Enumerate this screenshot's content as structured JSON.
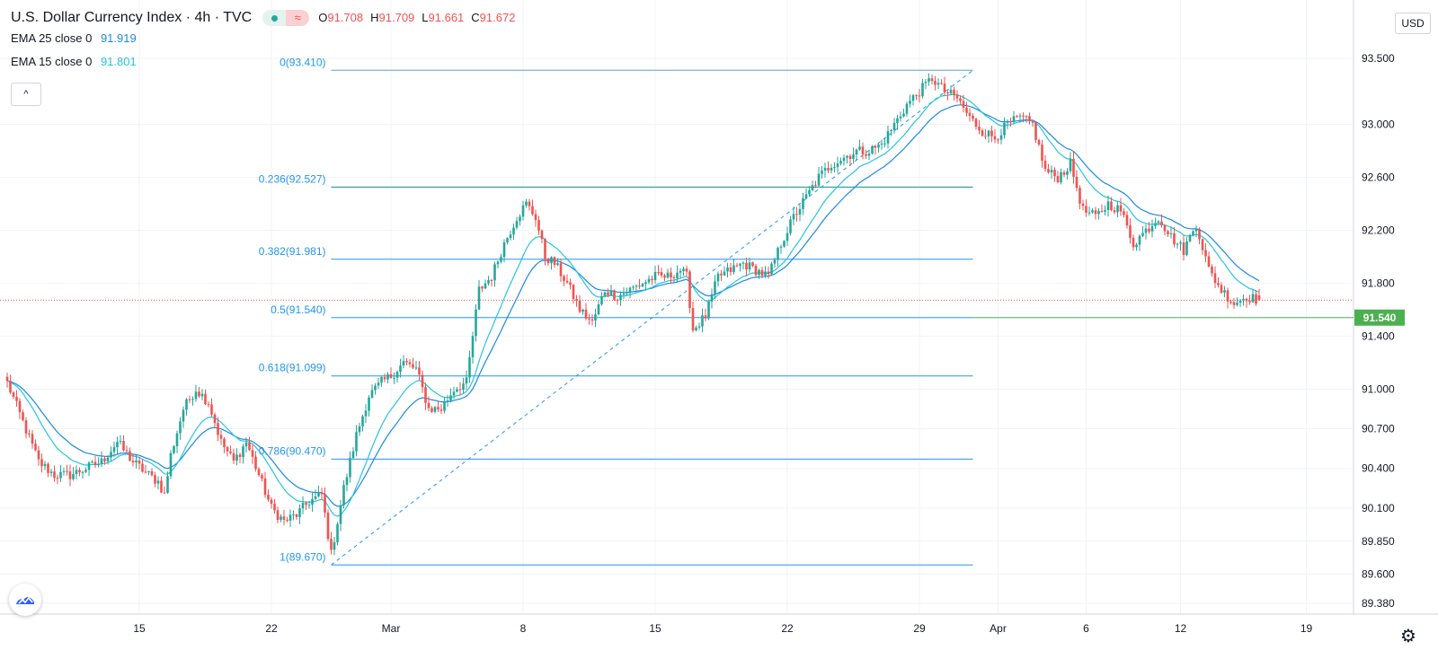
{
  "header": {
    "symbol_title": "U.S. Dollar Currency Index · 4h · TVC",
    "ohlc": {
      "o_label": "O",
      "o": "91.708",
      "h_label": "H",
      "h": "91.709",
      "l_label": "L",
      "l": "91.661",
      "c_label": "C",
      "c": "91.672"
    },
    "indicators": [
      {
        "name": "EMA 25 close 0",
        "value": "91.919",
        "color": "#1e88e5"
      },
      {
        "name": "EMA 15 close 0",
        "value": "91.801",
        "color": "#26c6da"
      }
    ],
    "status_icon": "market-open-dot-icon",
    "replay_icon": "wave-icon",
    "collapse_glyph": "^"
  },
  "currency_button": "USD",
  "colors": {
    "up": "#26a69a",
    "down": "#ef5350",
    "ema25": "#1e88e5",
    "ema15": "#26c6da",
    "fib": "#2196f3",
    "fib_top": "#5b9bd5",
    "level": "#4caf50",
    "lastprice": "#ef5350"
  },
  "chart_data": {
    "type": "candlestick",
    "title": "U.S. Dollar Currency Index",
    "interval": "4h",
    "y_axis": {
      "ticks": [
        "93.500",
        "93.000",
        "92.600",
        "92.200",
        "91.800",
        "91.400",
        "91.000",
        "90.700",
        "90.400",
        "90.100",
        "89.850",
        "89.600",
        "89.380"
      ],
      "tick_values": [
        93.5,
        93.0,
        92.6,
        92.2,
        91.8,
        91.4,
        91.0,
        90.7,
        90.4,
        90.1,
        89.85,
        89.6,
        89.38
      ],
      "ylim": [
        89.3,
        93.7
      ]
    },
    "x_axis": {
      "ticks": [
        "15",
        "22",
        "Mar",
        "8",
        "15",
        "22",
        "29",
        "Apr",
        "6",
        "12",
        "19"
      ],
      "tick_bar_index": [
        42,
        84,
        122,
        164,
        206,
        248,
        290,
        315,
        343,
        373,
        413
      ]
    },
    "price_label": "91.540",
    "last_price": 91.672,
    "key_level": 91.54,
    "fibonacci": {
      "start_bar": 103,
      "end_bar": 307,
      "low": 89.67,
      "high": 93.41,
      "levels": [
        {
          "label": "0(93.410)",
          "value": 93.41
        },
        {
          "label": "0.236(92.527)",
          "value": 92.527
        },
        {
          "label": "0.382(91.981)",
          "value": 91.981
        },
        {
          "label": "0.5(91.540)",
          "value": 91.54
        },
        {
          "label": "0.618(91.099)",
          "value": 91.099
        },
        {
          "label": "0.786(90.470)",
          "value": 90.47
        },
        {
          "label": "1(89.670)",
          "value": 89.67
        }
      ]
    },
    "path_points": [
      [
        0,
        91.05
      ],
      [
        5,
        90.75
      ],
      [
        10,
        90.45
      ],
      [
        15,
        90.35
      ],
      [
        20,
        90.35
      ],
      [
        25,
        90.4
      ],
      [
        30,
        90.45
      ],
      [
        35,
        90.6
      ],
      [
        40,
        90.45
      ],
      [
        45,
        90.35
      ],
      [
        48,
        90.3
      ],
      [
        50,
        90.2
      ],
      [
        52,
        90.5
      ],
      [
        56,
        90.85
      ],
      [
        60,
        91.0
      ],
      [
        64,
        90.9
      ],
      [
        68,
        90.6
      ],
      [
        72,
        90.45
      ],
      [
        76,
        90.6
      ],
      [
        80,
        90.35
      ],
      [
        84,
        90.1
      ],
      [
        88,
        90.0
      ],
      [
        92,
        90.05
      ],
      [
        96,
        90.15
      ],
      [
        100,
        90.2
      ],
      [
        103,
        89.75
      ],
      [
        107,
        90.25
      ],
      [
        111,
        90.65
      ],
      [
        115,
        90.95
      ],
      [
        119,
        91.05
      ],
      [
        122,
        91.1
      ],
      [
        126,
        91.2
      ],
      [
        130,
        91.15
      ],
      [
        134,
        90.85
      ],
      [
        138,
        90.85
      ],
      [
        142,
        91.0
      ],
      [
        146,
        91.05
      ],
      [
        150,
        91.75
      ],
      [
        154,
        91.85
      ],
      [
        158,
        92.1
      ],
      [
        162,
        92.3
      ],
      [
        165,
        92.4
      ],
      [
        168,
        92.3
      ],
      [
        171,
        92.0
      ],
      [
        174,
        91.95
      ],
      [
        178,
        91.8
      ],
      [
        182,
        91.6
      ],
      [
        186,
        91.5
      ],
      [
        190,
        91.75
      ],
      [
        194,
        91.7
      ],
      [
        198,
        91.75
      ],
      [
        202,
        91.8
      ],
      [
        206,
        91.85
      ],
      [
        210,
        91.85
      ],
      [
        214,
        91.9
      ],
      [
        216,
        91.85
      ],
      [
        218,
        91.45
      ],
      [
        222,
        91.55
      ],
      [
        226,
        91.85
      ],
      [
        230,
        91.9
      ],
      [
        234,
        91.95
      ],
      [
        238,
        91.9
      ],
      [
        242,
        91.85
      ],
      [
        246,
        92.1
      ],
      [
        250,
        92.3
      ],
      [
        254,
        92.45
      ],
      [
        258,
        92.6
      ],
      [
        262,
        92.7
      ],
      [
        266,
        92.75
      ],
      [
        270,
        92.8
      ],
      [
        274,
        92.8
      ],
      [
        278,
        92.85
      ],
      [
        282,
        93.0
      ],
      [
        286,
        93.15
      ],
      [
        290,
        93.25
      ],
      [
        294,
        93.35
      ],
      [
        298,
        93.25
      ],
      [
        302,
        93.2
      ],
      [
        306,
        93.05
      ],
      [
        310,
        92.95
      ],
      [
        314,
        92.9
      ],
      [
        318,
        93.0
      ],
      [
        322,
        93.05
      ],
      [
        326,
        93.0
      ],
      [
        330,
        92.65
      ],
      [
        334,
        92.6
      ],
      [
        338,
        92.7
      ],
      [
        342,
        92.35
      ],
      [
        346,
        92.3
      ],
      [
        350,
        92.4
      ],
      [
        354,
        92.35
      ],
      [
        358,
        92.1
      ],
      [
        362,
        92.2
      ],
      [
        366,
        92.3
      ],
      [
        370,
        92.15
      ],
      [
        374,
        92.05
      ],
      [
        378,
        92.25
      ],
      [
        382,
        91.9
      ],
      [
        386,
        91.75
      ],
      [
        390,
        91.65
      ],
      [
        394,
        91.7
      ],
      [
        398,
        91.672
      ]
    ],
    "ema25_last": 91.919,
    "ema15_last": 91.801
  }
}
